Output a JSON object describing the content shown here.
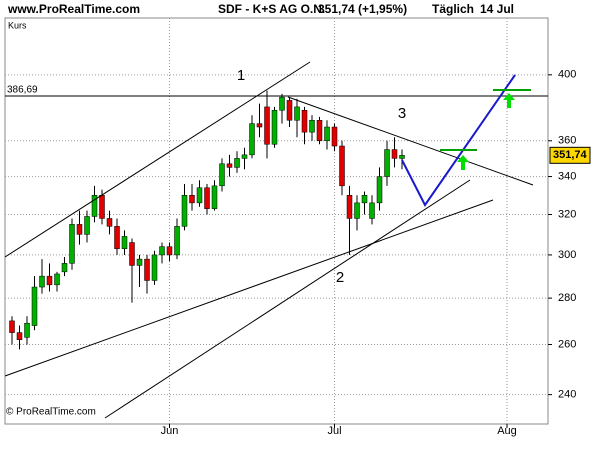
{
  "chart_data": {
    "type": "candlestick",
    "header": {
      "site": "www.ProRealTime.com",
      "instrument": "SDF - K+S AG O.N.",
      "quote": "351,74 (+1,95%)",
      "period": "Täglich",
      "date": "14 Jul"
    },
    "y_label": "Kurs",
    "copyright": "© ProRealTime.com",
    "log_scale": true,
    "grid": true,
    "up_color": "#00b000",
    "down_color": "#e00000",
    "ylim": [
      229,
      438
    ],
    "yticks": [
      240,
      260,
      280,
      300,
      320,
      340,
      360,
      400
    ],
    "categories": [
      null,
      null,
      null,
      null,
      null,
      null,
      null,
      null,
      null,
      null,
      null,
      null,
      null,
      null,
      null,
      null,
      null,
      null,
      null,
      null,
      null,
      "Jun",
      null,
      null,
      null,
      null,
      null,
      null,
      null,
      null,
      null,
      null,
      null,
      null,
      null,
      null,
      null,
      null,
      null,
      null,
      null,
      null,
      null,
      "Jul",
      null,
      null,
      null,
      null,
      null,
      null,
      null,
      null,
      null,
      null,
      null,
      null,
      null,
      null,
      null,
      null,
      null,
      null,
      null,
      null,
      null,
      null,
      "Aug",
      null,
      null,
      null,
      null,
      null
    ],
    "open": [
      270,
      265,
      263,
      268,
      285,
      290,
      286,
      292,
      296,
      315,
      310,
      319,
      330,
      318,
      314,
      303,
      306,
      295,
      298,
      288,
      300,
      304,
      300,
      314,
      330,
      326,
      334,
      323,
      335,
      347,
      345,
      350,
      352,
      370,
      380,
      358,
      378,
      384,
      372,
      378,
      365,
      372,
      360,
      368,
      357,
      330,
      318,
      326,
      318,
      326,
      340,
      355,
      350,
      null,
      null,
      null,
      null,
      null,
      null,
      null,
      null,
      null,
      null,
      null,
      null,
      null,
      null,
      null,
      null,
      null,
      null,
      null
    ],
    "high": [
      272,
      268,
      272,
      290,
      298,
      296,
      292,
      299,
      318,
      322,
      322,
      335,
      333,
      322,
      318,
      312,
      308,
      300,
      300,
      302,
      306,
      306,
      318,
      336,
      336,
      338,
      336,
      338,
      350,
      352,
      354,
      356,
      375,
      382,
      390,
      380,
      388,
      386,
      385,
      380,
      375,
      374,
      372,
      370,
      360,
      335,
      330,
      332,
      330,
      345,
      360,
      362,
      355,
      null,
      null,
      null,
      null,
      null,
      null,
      null,
      null,
      null,
      null,
      null,
      null,
      null,
      null,
      null,
      null,
      null,
      null,
      null
    ],
    "low": [
      260,
      258,
      260,
      266,
      282,
      283,
      283,
      290,
      293,
      305,
      306,
      316,
      315,
      310,
      300,
      300,
      278,
      285,
      282,
      286,
      296,
      297,
      298,
      312,
      322,
      324,
      320,
      322,
      332,
      340,
      342,
      344,
      350,
      362,
      350,
      356,
      370,
      368,
      362,
      358,
      360,
      358,
      355,
      354,
      330,
      300,
      312,
      320,
      315,
      322,
      335,
      345,
      344,
      null,
      null,
      null,
      null,
      null,
      null,
      null,
      null,
      null,
      null,
      null,
      null,
      null,
      null,
      null,
      null,
      null,
      null,
      null
    ],
    "close": [
      265,
      262,
      269,
      285,
      290,
      286,
      291,
      296,
      315,
      310,
      319,
      330,
      318,
      314,
      303,
      309,
      295,
      298,
      288,
      300,
      304,
      300,
      314,
      330,
      326,
      334,
      323,
      335,
      347,
      345,
      350,
      352,
      370,
      368,
      358,
      378,
      386,
      372,
      380,
      365,
      372,
      360,
      368,
      357,
      335,
      318,
      326,
      330,
      326,
      340,
      355,
      350,
      351.74,
      null,
      null,
      null,
      null,
      null,
      null,
      null,
      null,
      null,
      null,
      null,
      null,
      null,
      null,
      null,
      null,
      null,
      null,
      null
    ],
    "level": {
      "value": 386.69,
      "label": "386,69"
    },
    "last_price": {
      "value": 351.74,
      "label": "351,74"
    },
    "annotations": [
      "1",
      "2",
      "3"
    ]
  }
}
